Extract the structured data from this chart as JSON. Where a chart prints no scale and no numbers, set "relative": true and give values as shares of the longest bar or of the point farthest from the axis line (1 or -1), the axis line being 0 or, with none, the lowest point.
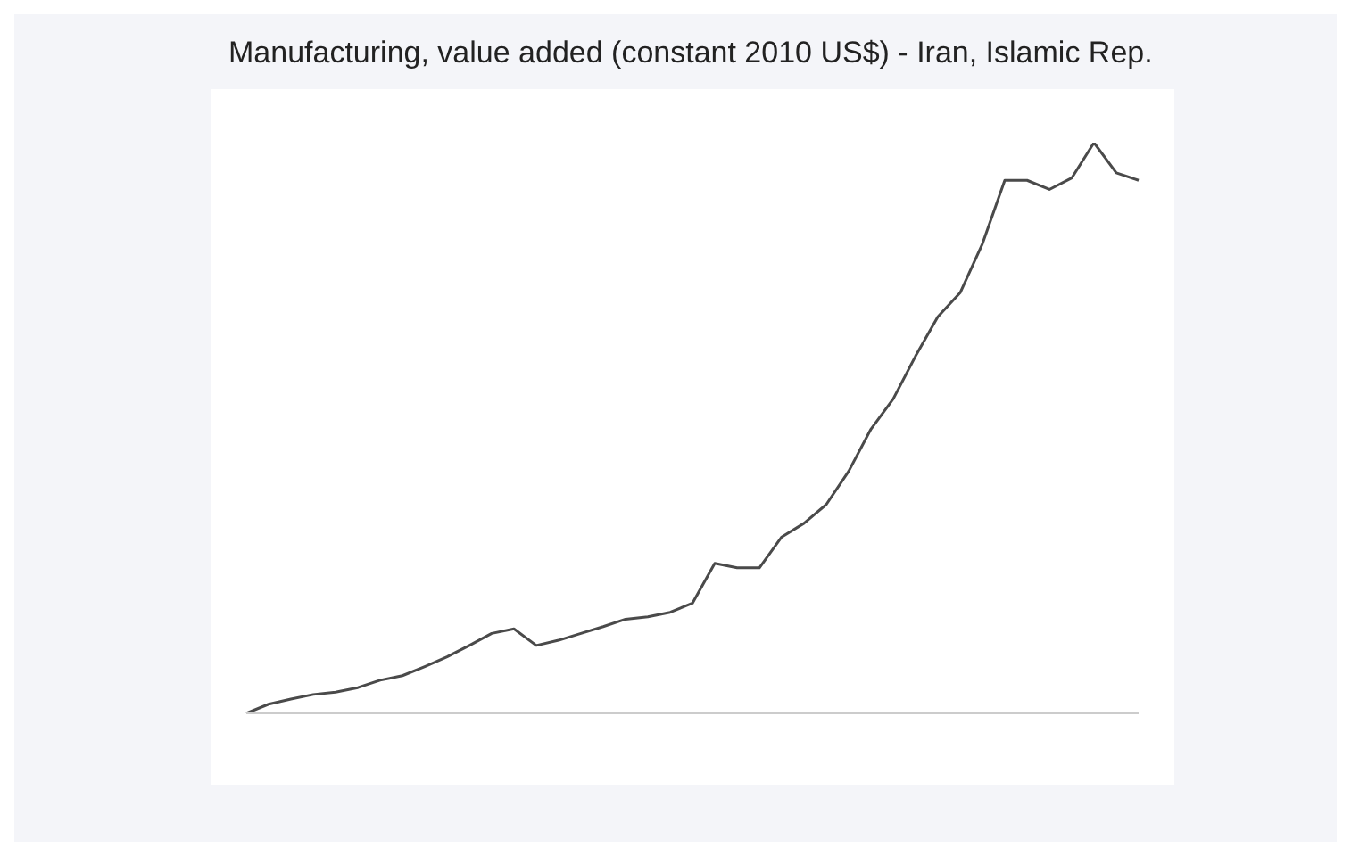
{
  "chart_data": {
    "type": "line",
    "title": "Manufacturing, value added (constant 2010 US$) - Iran, Islamic Rep.",
    "relative": true,
    "categories": [
      null,
      null,
      null,
      null,
      null,
      null,
      null,
      null,
      null,
      null,
      null,
      null,
      null,
      null,
      null,
      null,
      null,
      null,
      null,
      null,
      null,
      null,
      null,
      null,
      null,
      null,
      null,
      null,
      null,
      null,
      null,
      null,
      null,
      null,
      null,
      null,
      null,
      null,
      null,
      null,
      null
    ],
    "series": [
      {
        "color": "#4a4a4a",
        "values": [
          0,
          0.016,
          0.025,
          0.033,
          0.037,
          0.045,
          0.058,
          0.066,
          0.082,
          0.099,
          0.119,
          0.14,
          0.148,
          0.119,
          0.128,
          0.14,
          0.152,
          0.165,
          0.169,
          0.177,
          0.193,
          0.263,
          0.255,
          0.255,
          0.309,
          0.333,
          0.366,
          0.424,
          0.498,
          0.551,
          0.626,
          0.695,
          0.737,
          0.823,
          0.934,
          0.934,
          0.918,
          0.938,
          1,
          0.947,
          0.934
        ]
      }
    ],
    "marker": "none",
    "line_style": "solid",
    "grid": false,
    "legend": false
  }
}
